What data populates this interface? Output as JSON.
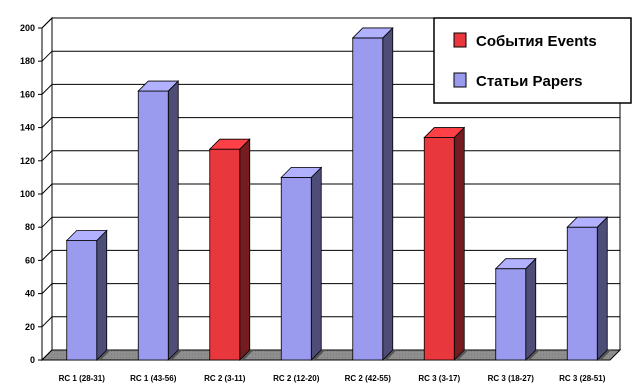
{
  "chart_data": {
    "type": "bar",
    "categories": [
      "RC 1 (28-31)",
      "RC 1 (43-56)",
      "RC 2 (3-11)",
      "RC 2 (12-20)",
      "RC 2 (42-55)",
      "RC 3 (3-17)",
      "RC 3 (18-27)",
      "RC 3 (28-51)"
    ],
    "values": [
      72,
      162,
      127,
      110,
      194,
      134,
      55,
      80
    ],
    "bar_series": [
      "papers",
      "papers",
      "events",
      "papers",
      "papers",
      "events",
      "papers",
      "papers"
    ],
    "series": [
      {
        "key": "events",
        "name": "События Events",
        "color": "#e8383d"
      },
      {
        "key": "papers",
        "name": "Статьи Papers",
        "color": "#9a9aee"
      }
    ],
    "ylim": [
      0,
      200
    ],
    "yticks": [
      0,
      20,
      40,
      60,
      80,
      100,
      120,
      140,
      160,
      180,
      200
    ],
    "grid": true,
    "legend_position": "top-right",
    "title": "",
    "xlabel": "",
    "ylabel": ""
  }
}
